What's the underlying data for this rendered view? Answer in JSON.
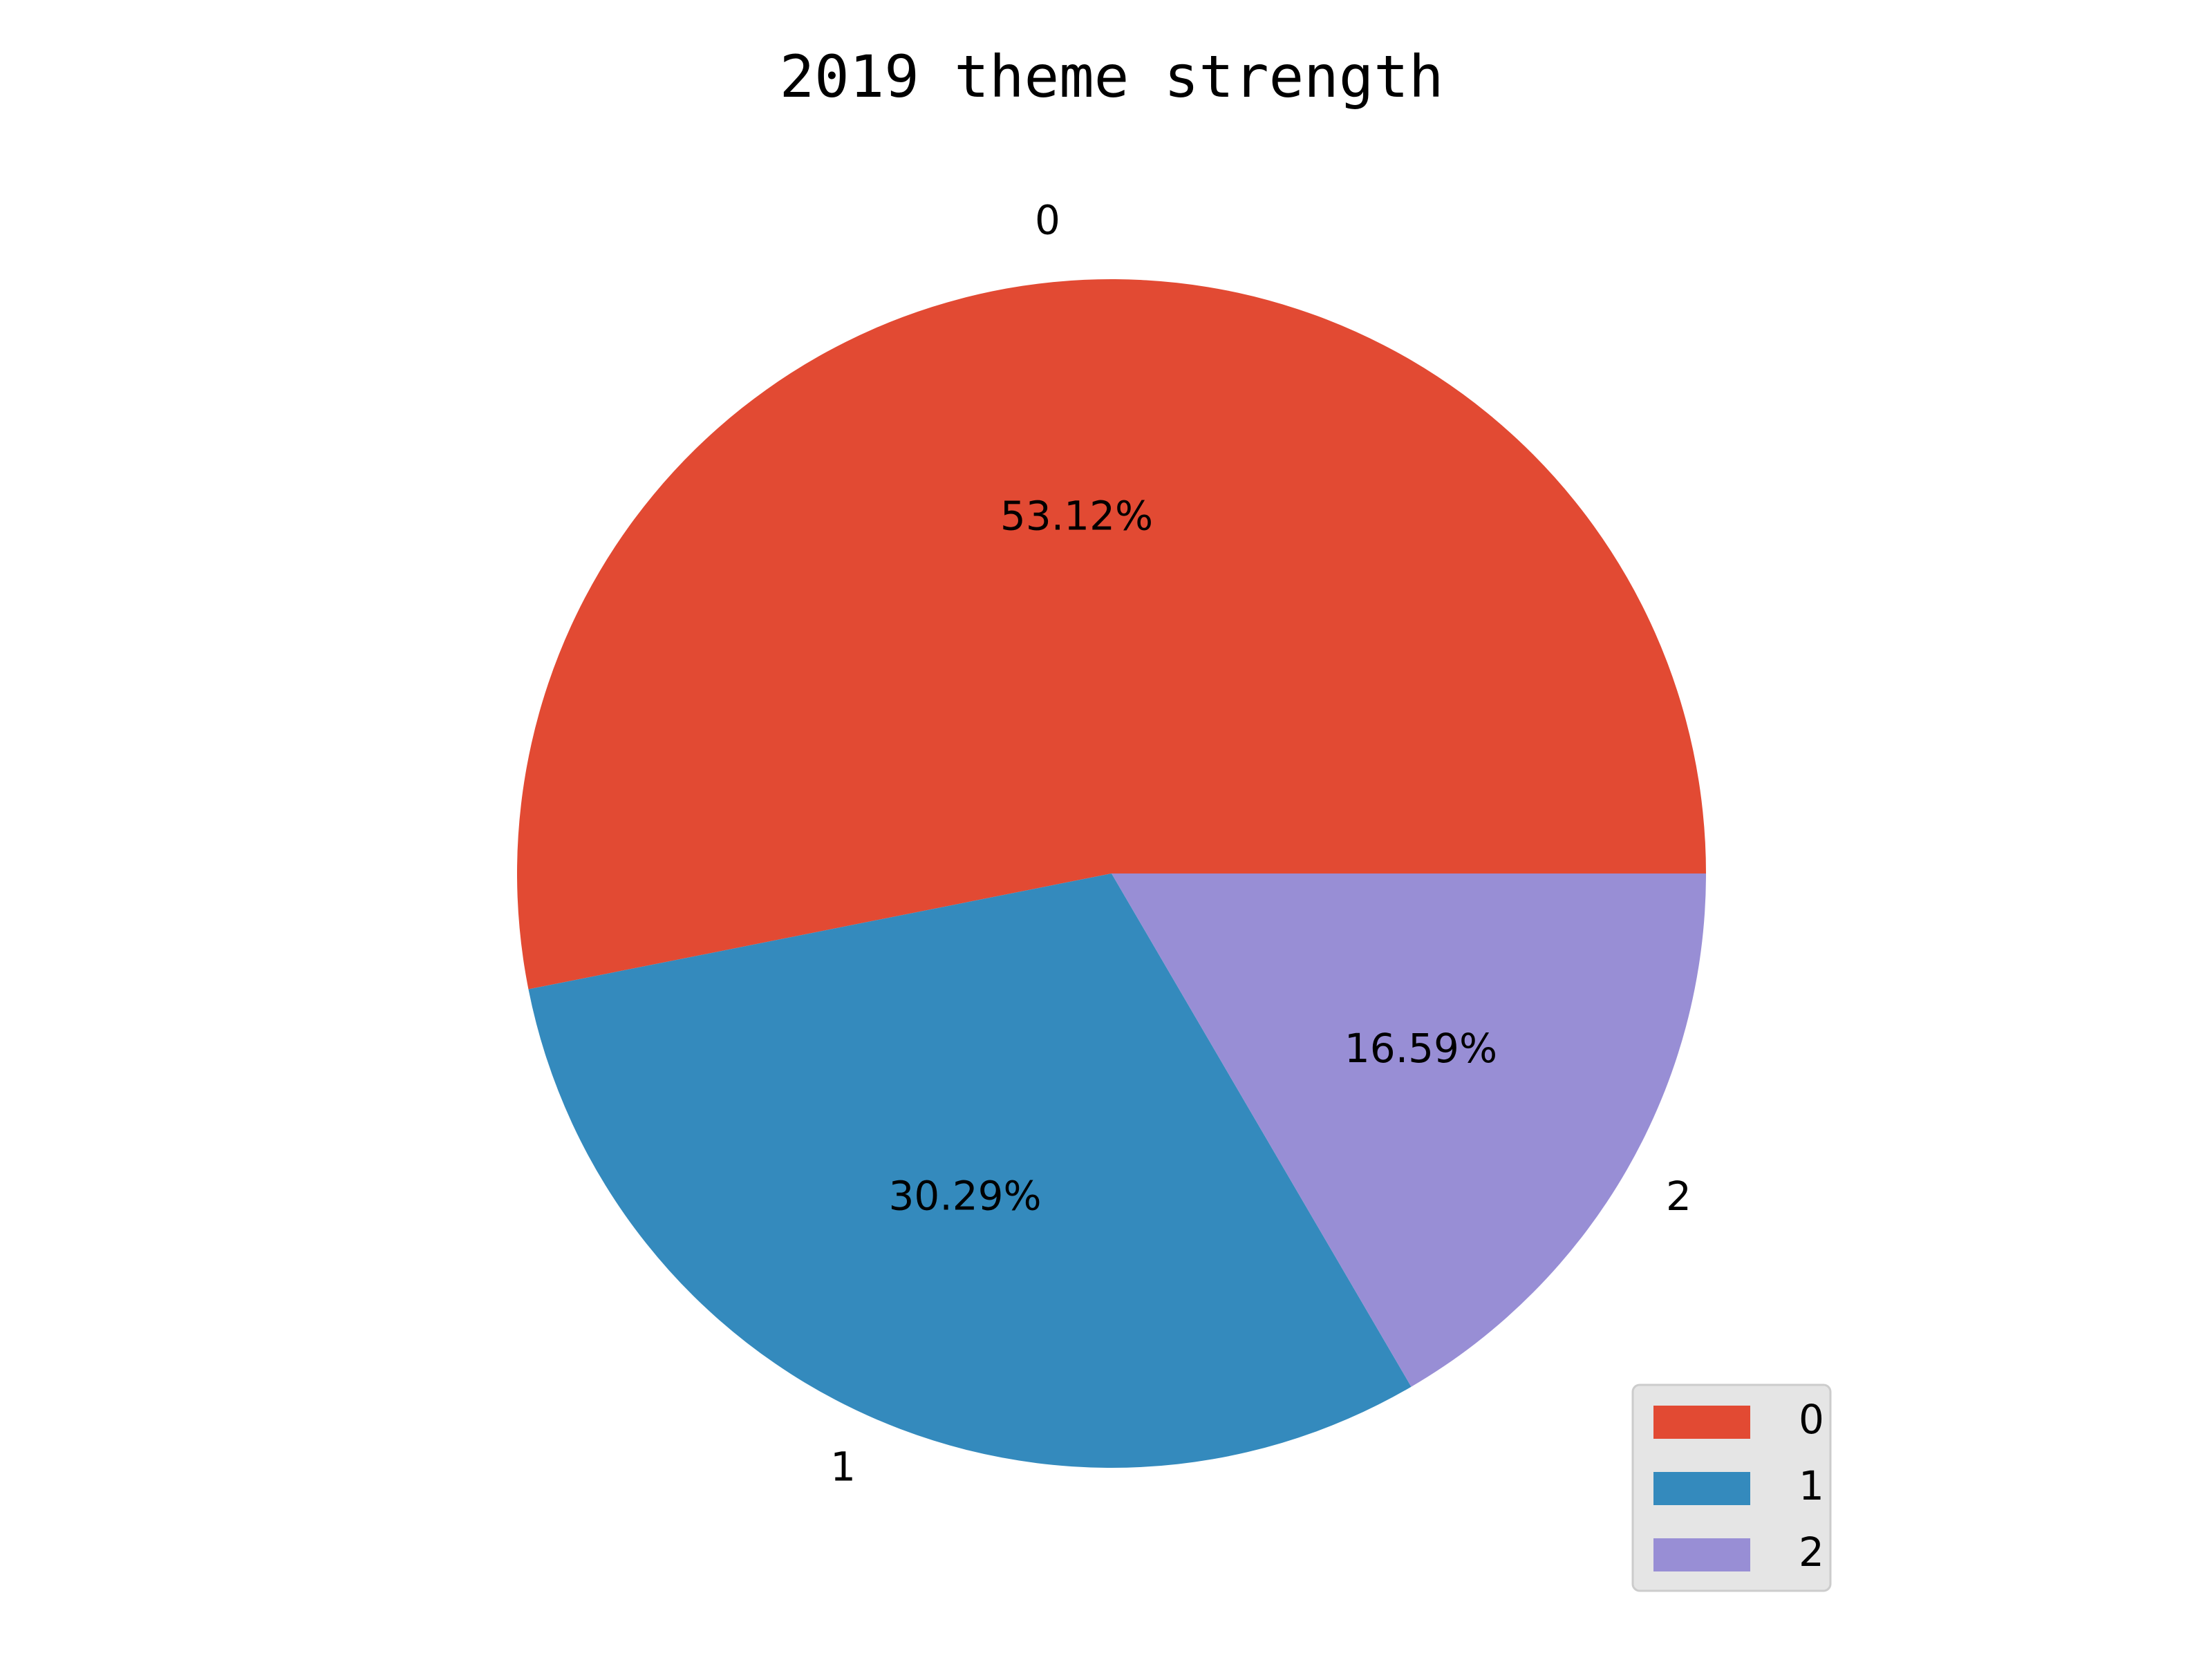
{
  "chart_data": {
    "type": "pie",
    "title": "2019 theme strength",
    "labels": [
      "0",
      "1",
      "2"
    ],
    "values": [
      53.12,
      30.29,
      16.59
    ],
    "value_labels": [
      "53.12%",
      "30.29%",
      "16.59%"
    ],
    "colors": [
      "#E24A33",
      "#348ABD",
      "#988ED5"
    ],
    "start_angle_deg": 0,
    "direction": "counterclockwise",
    "legend": {
      "placement": "lower-right",
      "entries": [
        "0",
        "1",
        "2"
      ]
    }
  }
}
